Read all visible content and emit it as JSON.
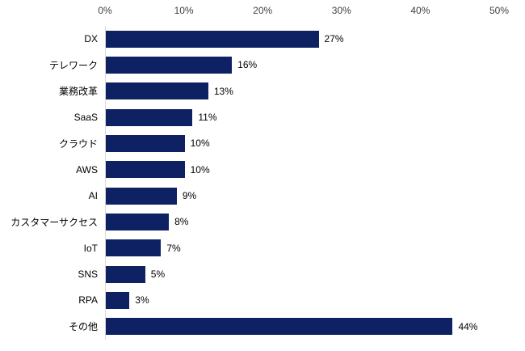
{
  "chart_data": {
    "type": "bar",
    "orientation": "horizontal",
    "title": "",
    "xlabel": "",
    "ylabel": "",
    "categories": [
      "DX",
      "テレワーク",
      "業務改革",
      "SaaS",
      "クラウド",
      "AWS",
      "AI",
      "カスタマーサクセス",
      "IoT",
      "SNS",
      "RPA",
      "その他"
    ],
    "values": [
      27,
      16,
      13,
      11,
      10,
      10,
      9,
      8,
      7,
      5,
      3,
      44
    ],
    "value_labels": [
      "27%",
      "16%",
      "13%",
      "11%",
      "10%",
      "10%",
      "9%",
      "8%",
      "7%",
      "5%",
      "3%",
      "44%"
    ],
    "xlim": [
      0,
      50
    ],
    "xtick_values": [
      0,
      10,
      20,
      30,
      40,
      50
    ],
    "xtick_labels": [
      "0%",
      "10%",
      "20%",
      "30%",
      "40%",
      "50%"
    ],
    "grid": false,
    "legend": "none",
    "colors": {
      "bar": "#0d2163",
      "axis_line": "#d9d9d9",
      "category_label": "#000000",
      "value_label": "#000000",
      "tick_label": "#404040",
      "background": "#ffffff"
    }
  }
}
